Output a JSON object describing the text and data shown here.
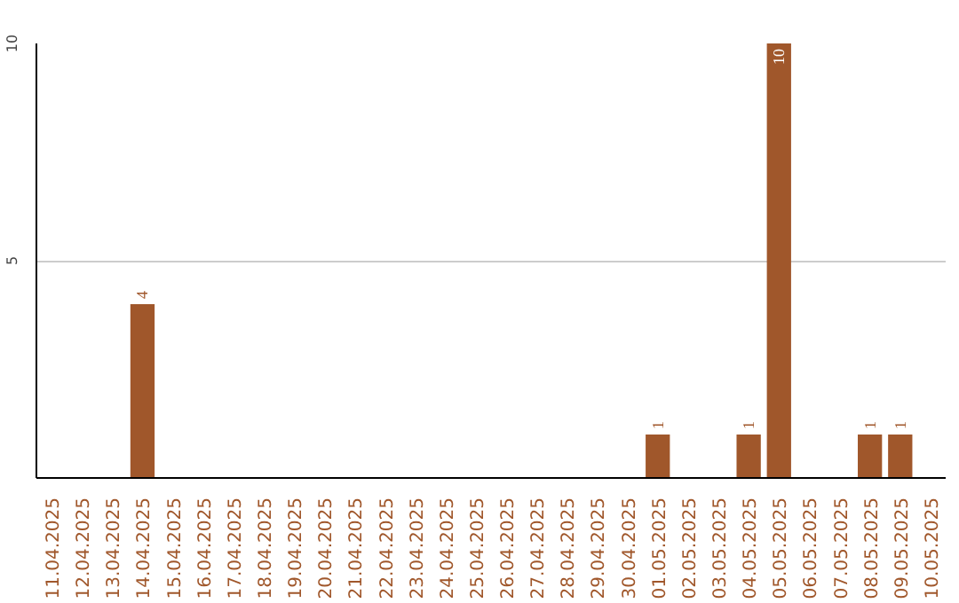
{
  "chart_data": {
    "type": "bar",
    "categories": [
      "11.04.2025",
      "12.04.2025",
      "13.04.2025",
      "14.04.2025",
      "15.04.2025",
      "16.04.2025",
      "17.04.2025",
      "18.04.2025",
      "19.04.2025",
      "20.04.2025",
      "21.04.2025",
      "22.04.2025",
      "23.04.2025",
      "24.04.2025",
      "25.04.2025",
      "26.04.2025",
      "27.04.2025",
      "28.04.2025",
      "29.04.2025",
      "30.04.2025",
      "01.05.2025",
      "02.05.2025",
      "03.05.2025",
      "04.05.2025",
      "05.05.2025",
      "06.05.2025",
      "07.05.2025",
      "08.05.2025",
      "09.05.2025",
      "10.05.2025"
    ],
    "values": [
      0,
      0,
      0,
      4,
      0,
      0,
      0,
      0,
      0,
      0,
      0,
      0,
      0,
      0,
      0,
      0,
      0,
      0,
      0,
      0,
      1,
      0,
      0,
      1,
      10,
      0,
      0,
      1,
      1,
      0
    ],
    "value_labels": [
      null,
      null,
      null,
      "4",
      null,
      null,
      null,
      null,
      null,
      null,
      null,
      null,
      null,
      null,
      null,
      null,
      null,
      null,
      null,
      null,
      "1",
      null,
      null,
      "1",
      "10",
      null,
      null,
      "1",
      "1",
      null
    ],
    "color": "#a0572b",
    "ylim": [
      0,
      10
    ],
    "yticks": [
      5,
      10
    ],
    "grid": "y"
  }
}
